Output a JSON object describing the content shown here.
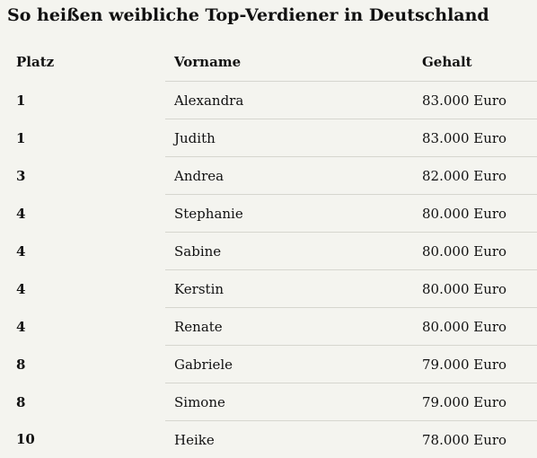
{
  "title": "So heißen weibliche Top-Verdiener in Deutschland",
  "table": {
    "headers": {
      "rank": "Platz",
      "name": "Vorname",
      "salary": "Gehalt"
    },
    "rows": [
      {
        "rank": "1",
        "name": "Alexandra",
        "salary": "83.000 Euro"
      },
      {
        "rank": "1",
        "name": "Judith",
        "salary": "83.000 Euro"
      },
      {
        "rank": "3",
        "name": "Andrea",
        "salary": "82.000 Euro"
      },
      {
        "rank": "4",
        "name": "Stephanie",
        "salary": "80.000 Euro"
      },
      {
        "rank": "4",
        "name": "Sabine",
        "salary": "80.000 Euro"
      },
      {
        "rank": "4",
        "name": "Kerstin",
        "salary": "80.000 Euro"
      },
      {
        "rank": "4",
        "name": "Renate",
        "salary": "80.000 Euro"
      },
      {
        "rank": "8",
        "name": "Gabriele",
        "salary": "79.000 Euro"
      },
      {
        "rank": "8",
        "name": "Simone",
        "salary": "79.000 Euro"
      },
      {
        "rank": "10",
        "name": "Heike",
        "salary": "78.000 Euro"
      }
    ]
  }
}
